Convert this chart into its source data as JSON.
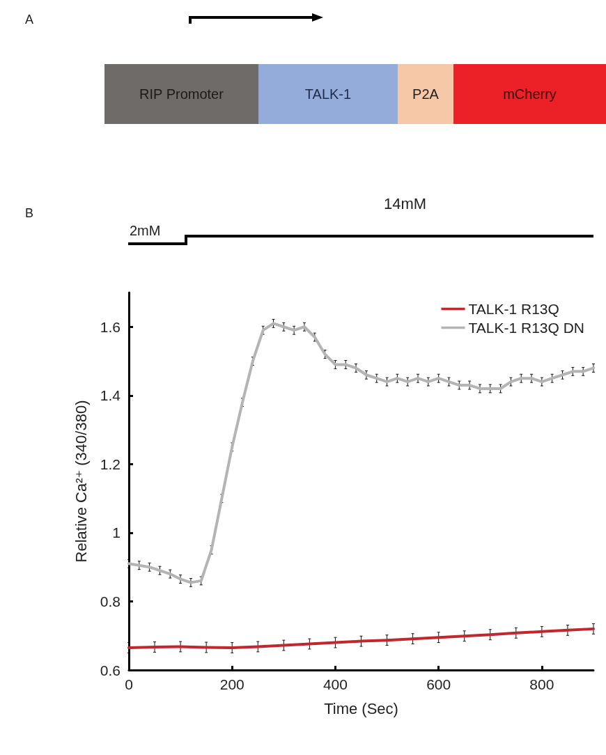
{
  "chart_data": {
    "type": "line",
    "xlabel": "Time (Sec)",
    "ylabel": "Relative Ca²⁺ (340/380)",
    "xlim": [
      0,
      900
    ],
    "xticks": [
      0,
      200,
      400,
      600,
      800
    ],
    "ylim": [
      0.6,
      1.7
    ],
    "yticks": [
      0.6,
      0.8,
      1,
      1.2,
      1.4,
      1.6
    ],
    "legend": "top right",
    "marker": "none",
    "line_style": "solid",
    "annotations": [
      "A",
      "RIP Promoter",
      "TALK-1",
      "P2A",
      "mCherry",
      "B",
      "2mM",
      "14mM"
    ],
    "series": [
      {
        "name": "TALK-1 R13Q",
        "color": "#c0282d",
        "x": [
          0,
          50,
          100,
          150,
          200,
          250,
          300,
          350,
          400,
          450,
          500,
          550,
          600,
          650,
          700,
          750,
          800,
          850,
          900
        ],
        "values": [
          0.665,
          0.667,
          0.668,
          0.666,
          0.665,
          0.668,
          0.672,
          0.676,
          0.68,
          0.684,
          0.687,
          0.691,
          0.695,
          0.699,
          0.703,
          0.708,
          0.712,
          0.716,
          0.72
        ],
        "errors": [
          0.015,
          0.015,
          0.015,
          0.015,
          0.015,
          0.015,
          0.015,
          0.015,
          0.015,
          0.015,
          0.015,
          0.015,
          0.015,
          0.015,
          0.015,
          0.015,
          0.015,
          0.015,
          0.015
        ]
      },
      {
        "name": "TALK-1 R13Q DN",
        "color": "#b4b4b4",
        "x": [
          0,
          20,
          40,
          60,
          80,
          100,
          120,
          140,
          160,
          180,
          200,
          220,
          240,
          260,
          280,
          300,
          320,
          340,
          360,
          380,
          400,
          420,
          440,
          460,
          480,
          500,
          520,
          540,
          560,
          580,
          600,
          620,
          640,
          660,
          680,
          700,
          720,
          740,
          760,
          780,
          800,
          820,
          840,
          860,
          880,
          900
        ],
        "values": [
          0.91,
          0.905,
          0.9,
          0.89,
          0.88,
          0.865,
          0.855,
          0.86,
          0.95,
          1.1,
          1.25,
          1.38,
          1.5,
          1.59,
          1.61,
          1.6,
          1.59,
          1.6,
          1.57,
          1.52,
          1.49,
          1.49,
          1.48,
          1.46,
          1.45,
          1.44,
          1.45,
          1.44,
          1.45,
          1.44,
          1.45,
          1.44,
          1.43,
          1.43,
          1.42,
          1.42,
          1.42,
          1.44,
          1.45,
          1.45,
          1.44,
          1.45,
          1.46,
          1.47,
          1.47,
          1.48
        ],
        "errors": [
          0.012,
          0.012,
          0.012,
          0.012,
          0.012,
          0.012,
          0.012,
          0.012,
          0.012,
          0.012,
          0.012,
          0.012,
          0.012,
          0.012,
          0.012,
          0.012,
          0.012,
          0.012,
          0.012,
          0.012,
          0.012,
          0.012,
          0.012,
          0.012,
          0.012,
          0.012,
          0.012,
          0.012,
          0.012,
          0.012,
          0.012,
          0.012,
          0.012,
          0.012,
          0.012,
          0.012,
          0.012,
          0.012,
          0.012,
          0.012,
          0.012,
          0.012,
          0.012,
          0.012,
          0.012,
          0.012
        ]
      }
    ]
  }
}
